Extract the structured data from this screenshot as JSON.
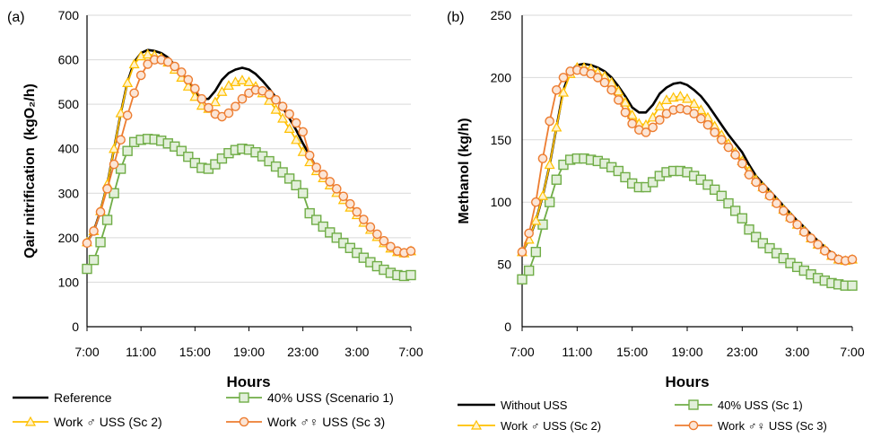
{
  "chart_data": [
    {
      "type": "line",
      "panel_label": "(a)",
      "title": "",
      "xlabel": "Hours",
      "ylabel": "Qair nitrification",
      "ylabel_unit": "(kgO₂/h)",
      "ylim": [
        0,
        700
      ],
      "yticks": [
        "0",
        "100",
        "200",
        "300",
        "400",
        "500",
        "600",
        "700"
      ],
      "xlim": [
        7,
        31
      ],
      "xticks": [
        "7:00",
        "11:00",
        "15:00",
        "19:00",
        "23:00",
        "3:00",
        "7:00"
      ],
      "grid": true,
      "legend_position": "bottom",
      "series": [
        {
          "name": "Reference",
          "color": "#000000",
          "marker": "none",
          "x": [
            7,
            7.5,
            8,
            8.5,
            9,
            9.5,
            10,
            10.5,
            11,
            11.5,
            12,
            12.5,
            13,
            13.5,
            14,
            14.5,
            15,
            15.5,
            16,
            16.5,
            17,
            17.5,
            18,
            18.5,
            19,
            19.5,
            20,
            20.5,
            21,
            21.5,
            22,
            22.5,
            23,
            23.5,
            24,
            24.5,
            25,
            25.5,
            26,
            26.5,
            27,
            27.5,
            28,
            28.5,
            29,
            29.5,
            30,
            30.5,
            31
          ],
          "values": [
            190,
            215,
            260,
            320,
            400,
            480,
            550,
            595,
            615,
            622,
            620,
            615,
            605,
            588,
            570,
            550,
            528,
            512,
            512,
            530,
            555,
            570,
            578,
            582,
            578,
            568,
            553,
            535,
            515,
            493,
            468,
            442,
            412,
            385,
            357,
            340,
            323,
            305,
            288,
            270,
            253,
            236,
            219,
            203,
            188,
            176,
            168,
            165,
            170
          ]
        },
        {
          "name": "40% USS (Scenario 1)",
          "color": "#70ad47",
          "marker": "square",
          "x": [
            7,
            7.5,
            8,
            8.5,
            9,
            9.5,
            10,
            10.5,
            11,
            11.5,
            12,
            12.5,
            13,
            13.5,
            14,
            14.5,
            15,
            15.5,
            16,
            16.5,
            17,
            17.5,
            18,
            18.5,
            19,
            19.5,
            20,
            20.5,
            21,
            21.5,
            22,
            22.5,
            23,
            23.5,
            24,
            24.5,
            25,
            25.5,
            26,
            26.5,
            27,
            27.5,
            28,
            28.5,
            29,
            29.5,
            30,
            30.5,
            31
          ],
          "values": [
            130,
            150,
            190,
            240,
            300,
            355,
            395,
            415,
            420,
            422,
            421,
            418,
            412,
            405,
            395,
            382,
            368,
            357,
            355,
            365,
            378,
            390,
            397,
            400,
            398,
            392,
            383,
            372,
            360,
            347,
            333,
            318,
            300,
            255,
            240,
            225,
            212,
            200,
            188,
            177,
            166,
            155,
            145,
            136,
            128,
            121,
            116,
            114,
            116
          ]
        },
        {
          "name": "Work ♂ USS (Sc 2)",
          "color": "#ffc000",
          "marker": "triangle",
          "x": [
            7,
            7.5,
            8,
            8.5,
            9,
            9.5,
            10,
            10.5,
            11,
            11.5,
            12,
            12.5,
            13,
            13.5,
            14,
            14.5,
            15,
            15.5,
            16,
            16.5,
            17,
            17.5,
            18,
            18.5,
            19,
            19.5,
            20,
            20.5,
            21,
            21.5,
            22,
            22.5,
            23,
            23.5,
            24,
            24.5,
            25,
            25.5,
            26,
            26.5,
            27,
            27.5,
            28,
            28.5,
            29,
            29.5,
            30,
            30.5,
            31
          ],
          "values": [
            190,
            215,
            260,
            320,
            400,
            480,
            548,
            590,
            608,
            612,
            610,
            604,
            594,
            578,
            560,
            540,
            517,
            497,
            490,
            505,
            528,
            542,
            550,
            554,
            550,
            540,
            525,
            508,
            488,
            468,
            445,
            420,
            393,
            370,
            350,
            334,
            318,
            301,
            285,
            268,
            251,
            234,
            218,
            202,
            188,
            176,
            168,
            165,
            170
          ]
        },
        {
          "name": "Work ♂♀ USS (Sc 3)",
          "color": "#ed7d31",
          "marker": "circle",
          "x": [
            7,
            7.5,
            8,
            8.5,
            9,
            9.5,
            10,
            10.5,
            11,
            11.5,
            12,
            12.5,
            13,
            13.5,
            14,
            14.5,
            15,
            15.5,
            16,
            16.5,
            17,
            17.5,
            18,
            18.5,
            19,
            19.5,
            20,
            20.5,
            21,
            21.5,
            22,
            22.5,
            23,
            23.5,
            24,
            24.5,
            25,
            25.5,
            26,
            26.5,
            27,
            27.5,
            28,
            28.5,
            29,
            29.5,
            30,
            30.5,
            31
          ],
          "values": [
            188,
            215,
            258,
            310,
            365,
            420,
            475,
            525,
            565,
            590,
            600,
            600,
            595,
            585,
            572,
            555,
            535,
            512,
            492,
            478,
            472,
            480,
            495,
            512,
            525,
            532,
            530,
            522,
            510,
            495,
            478,
            458,
            438,
            385,
            358,
            342,
            326,
            310,
            293,
            276,
            258,
            241,
            224,
            208,
            193,
            180,
            170,
            166,
            170
          ]
        }
      ]
    },
    {
      "type": "line",
      "panel_label": "(b)",
      "title": "",
      "xlabel": "Hours",
      "ylabel": "Methanol (kg/h)",
      "ylim": [
        0,
        250
      ],
      "yticks": [
        "0",
        "50",
        "100",
        "150",
        "200",
        "250"
      ],
      "xlim": [
        7,
        31
      ],
      "xticks": [
        "7:00",
        "11:00",
        "15:00",
        "19:00",
        "23:00",
        "3:00",
        "7:00"
      ],
      "grid": true,
      "legend_position": "bottom",
      "series": [
        {
          "name": "Without USS",
          "color": "#000000",
          "marker": "none",
          "x": [
            7,
            7.5,
            8,
            8.5,
            9,
            9.5,
            10,
            10.5,
            11,
            11.5,
            12,
            12.5,
            13,
            13.5,
            14,
            14.5,
            15,
            15.5,
            16,
            16.5,
            17,
            17.5,
            18,
            18.5,
            19,
            19.5,
            20,
            20.5,
            21,
            21.5,
            22,
            22.5,
            23,
            23.5,
            24,
            24.5,
            25,
            25.5,
            26,
            26.5,
            27,
            27.5,
            28,
            28.5,
            29,
            29.5,
            30,
            30.5,
            31
          ],
          "values": [
            60,
            70,
            85,
            105,
            130,
            160,
            190,
            205,
            210,
            211,
            210,
            208,
            205,
            200,
            193,
            185,
            176,
            172,
            172,
            178,
            187,
            192,
            195,
            196,
            194,
            190,
            185,
            178,
            170,
            162,
            154,
            147,
            140,
            130,
            121,
            115,
            109,
            103,
            97,
            91,
            85,
            80,
            74,
            69,
            64,
            59,
            56,
            54,
            55
          ]
        },
        {
          "name": "40% USS (Sc 1)",
          "color": "#70ad47",
          "marker": "square",
          "x": [
            7,
            7.5,
            8,
            8.5,
            9,
            9.5,
            10,
            10.5,
            11,
            11.5,
            12,
            12.5,
            13,
            13.5,
            14,
            14.5,
            15,
            15.5,
            16,
            16.5,
            17,
            17.5,
            18,
            18.5,
            19,
            19.5,
            20,
            20.5,
            21,
            21.5,
            22,
            22.5,
            23,
            23.5,
            24,
            24.5,
            25,
            25.5,
            26,
            26.5,
            27,
            27.5,
            28,
            28.5,
            29,
            29.5,
            30,
            30.5,
            31
          ],
          "values": [
            38,
            45,
            60,
            82,
            100,
            118,
            130,
            134,
            135,
            135,
            134,
            133,
            131,
            128,
            125,
            120,
            115,
            112,
            112,
            116,
            121,
            124,
            125,
            125,
            124,
            121,
            118,
            114,
            110,
            105,
            99,
            93,
            87,
            78,
            72,
            67,
            63,
            59,
            55,
            51,
            48,
            45,
            42,
            39,
            37,
            35,
            34,
            33,
            33
          ]
        },
        {
          "name": "Work ♂ USS (Sc 2)",
          "color": "#ffc000",
          "marker": "triangle",
          "x": [
            7,
            7.5,
            8,
            8.5,
            9,
            9.5,
            10,
            10.5,
            11,
            11.5,
            12,
            12.5,
            13,
            13.5,
            14,
            14.5,
            15,
            15.5,
            16,
            16.5,
            17,
            17.5,
            18,
            18.5,
            19,
            19.5,
            20,
            20.5,
            21,
            21.5,
            22,
            22.5,
            23,
            23.5,
            24,
            24.5,
            25,
            25.5,
            26,
            26.5,
            27,
            27.5,
            28,
            28.5,
            29,
            29.5,
            30,
            30.5,
            31
          ],
          "values": [
            60,
            70,
            85,
            105,
            130,
            160,
            188,
            203,
            208,
            208,
            207,
            204,
            201,
            196,
            189,
            180,
            170,
            163,
            162,
            168,
            177,
            182,
            184,
            185,
            183,
            179,
            174,
            168,
            161,
            154,
            147,
            140,
            133,
            125,
            118,
            112,
            106,
            100,
            94,
            88,
            82,
            77,
            71,
            66,
            62,
            57,
            54,
            53,
            54
          ]
        },
        {
          "name": "Work ♂♀ USS (Sc 3)",
          "color": "#ed7d31",
          "marker": "circle",
          "x": [
            7,
            7.5,
            8,
            8.5,
            9,
            9.5,
            10,
            10.5,
            11,
            11.5,
            12,
            12.5,
            13,
            13.5,
            14,
            14.5,
            15,
            15.5,
            16,
            16.5,
            17,
            17.5,
            18,
            18.5,
            19,
            19.5,
            20,
            20.5,
            21,
            21.5,
            22,
            22.5,
            23,
            23.5,
            24,
            24.5,
            25,
            25.5,
            26,
            26.5,
            27,
            27.5,
            28,
            28.5,
            29,
            29.5,
            30,
            30.5,
            31
          ],
          "values": [
            60,
            75,
            100,
            135,
            165,
            190,
            200,
            205,
            206,
            205,
            203,
            200,
            196,
            190,
            182,
            172,
            163,
            158,
            156,
            160,
            166,
            171,
            174,
            175,
            174,
            171,
            167,
            162,
            156,
            150,
            144,
            138,
            131,
            122,
            116,
            111,
            105,
            99,
            93,
            87,
            82,
            76,
            71,
            66,
            61,
            57,
            54,
            53,
            54
          ]
        }
      ]
    }
  ]
}
